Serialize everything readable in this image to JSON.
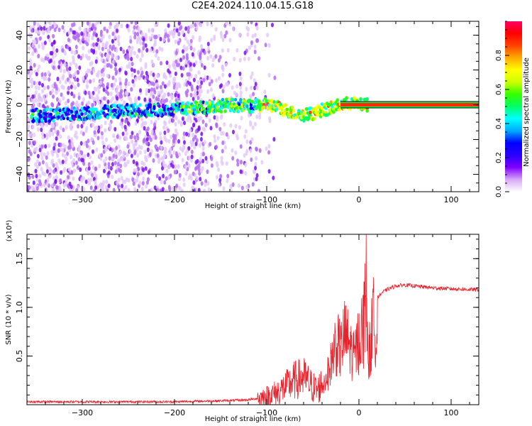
{
  "title": "C2E4.2024.110.04.15.G18",
  "chart_data": [
    {
      "type": "heatmap",
      "xlabel": "Height of straight line (km)",
      "ylabel": "Frequency (Hz)",
      "xlim": [
        -360,
        130
      ],
      "ylim": [
        -50,
        48
      ],
      "xticks": [
        -300,
        -200,
        -100,
        0,
        100
      ],
      "yticks": [
        -40,
        -20,
        0,
        20,
        40
      ],
      "colorbar": {
        "label": "Normalized spectral amplitude",
        "range": [
          0.0,
          1.0
        ],
        "ticks": [
          0.0,
          0.2,
          0.4,
          0.6,
          0.8
        ],
        "colors": [
          "#ffffff",
          "#d7a8f7",
          "#7f00ff",
          "#2a00ff",
          "#0000ff",
          "#00aaff",
          "#00ffff",
          "#00ff66",
          "#33ff00",
          "#ccff00",
          "#ffff00",
          "#ffaa00",
          "#ff4400",
          "#ff0000",
          "#ff0066"
        ]
      },
      "ridge": {
        "x": [
          -355,
          -330,
          -300,
          -270,
          -240,
          -210,
          -180,
          -160,
          -140,
          -120,
          -100,
          -90,
          -80,
          -70,
          -60,
          -50,
          -40,
          -30,
          -20,
          -10,
          0,
          10,
          130
        ],
        "y": [
          -6,
          -6,
          -5,
          -4,
          -3,
          -3,
          -2,
          -1,
          0,
          -1,
          0,
          -1,
          -3,
          -5,
          -6,
          -5,
          -3,
          -2,
          0,
          1,
          0,
          0,
          0
        ]
      },
      "noise_region_x": [
        -360,
        -110
      ],
      "tone_region_x": [
        -20,
        130
      ],
      "tone_frequency": 0
    },
    {
      "type": "line",
      "xlabel": "Height of straight line (km)",
      "ylabel": "SNR (10 * v/v)",
      "yunit": "(x10⁴)",
      "xlim": [
        -360,
        130
      ],
      "ylim": [
        0,
        1.75
      ],
      "xticks": [
        -300,
        -200,
        -100,
        0,
        100
      ],
      "yticks": [
        0.5,
        1.0,
        1.5
      ],
      "ytick_labels": [
        "0.5",
        "1.0",
        "1.5"
      ],
      "series": [
        {
          "color": "#e8202a",
          "x": [
            -360,
            -300,
            -200,
            -150,
            -120,
            -100,
            -90,
            -80,
            -70,
            -60,
            -50,
            -45,
            -40,
            -35,
            -30,
            -25,
            -20,
            -15,
            -10,
            -5,
            0,
            5,
            8,
            10,
            15,
            20,
            25,
            30,
            40,
            50,
            60,
            80,
            100,
            130
          ],
          "y": [
            0.03,
            0.03,
            0.03,
            0.04,
            0.05,
            0.08,
            0.12,
            0.18,
            0.25,
            0.28,
            0.18,
            0.15,
            0.22,
            0.35,
            0.55,
            0.8,
            0.7,
            0.9,
            0.75,
            0.6,
            0.85,
            1.0,
            1.72,
            0.5,
            1.05,
            1.1,
            1.15,
            1.18,
            1.22,
            1.23,
            1.22,
            1.2,
            1.19,
            1.18
          ]
        }
      ]
    }
  ]
}
